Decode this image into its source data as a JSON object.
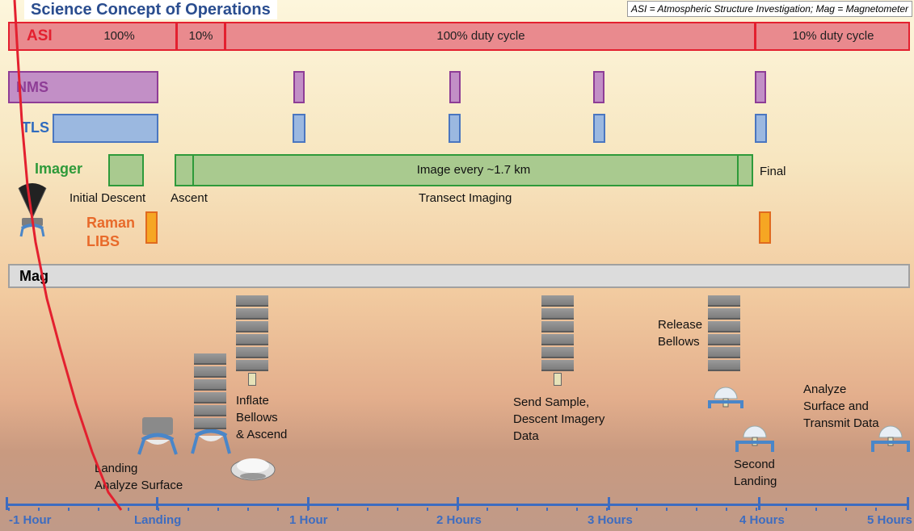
{
  "header": {
    "title": "Science Concept of Operations",
    "legend_note": "ASI = Atmospheric Structure Investigation; Mag = Magnetometer"
  },
  "instruments": {
    "asi": {
      "label": "ASI",
      "segments": [
        "100%",
        "10%",
        "100% duty cycle",
        "10% duty cycle"
      ],
      "color": "#e98a8e",
      "border": "#e3202f"
    },
    "nms": {
      "label": "NMS",
      "color": "#c28fc6",
      "border": "#8e3d96"
    },
    "tls": {
      "label": "TLS",
      "color": "#9bb8e0",
      "border": "#4a76c0"
    },
    "imager": {
      "label": "Imager",
      "bar_text": "Image every ~1.7 km",
      "final_label": "Final",
      "initial_descent_label": "Initial Descent",
      "ascent_label": "Ascent",
      "transect_label": "Transect Imaging",
      "color": "#a9ca8f",
      "border": "#2e9a3a"
    },
    "raman_libs": {
      "label_line1": "Raman",
      "label_line2": "LIBS",
      "color": "#f6a623"
    },
    "mag": {
      "label": "Mag",
      "color": "#dcdcdc"
    }
  },
  "annotations": {
    "landing": [
      "Landing",
      "Analyze Surface"
    ],
    "inflate": [
      "Inflate",
      "Bellows",
      "& Ascend"
    ],
    "send_sample": [
      "Send Sample,",
      "Descent Imagery",
      "Data"
    ],
    "release": [
      "Release",
      "Bellows"
    ],
    "second_landing": [
      "Second",
      "Landing"
    ],
    "analyze_transmit": [
      "Analyze",
      "Surface and",
      "Transmit Data"
    ]
  },
  "timeline": {
    "ticks": [
      "-1 Hour",
      "Landing",
      "1 Hour",
      "2 Hours",
      "3 Hours",
      "4 Hours",
      "5 Hours"
    ],
    "color": "#3d6cc0"
  },
  "trajectory_color": "#e3202f"
}
